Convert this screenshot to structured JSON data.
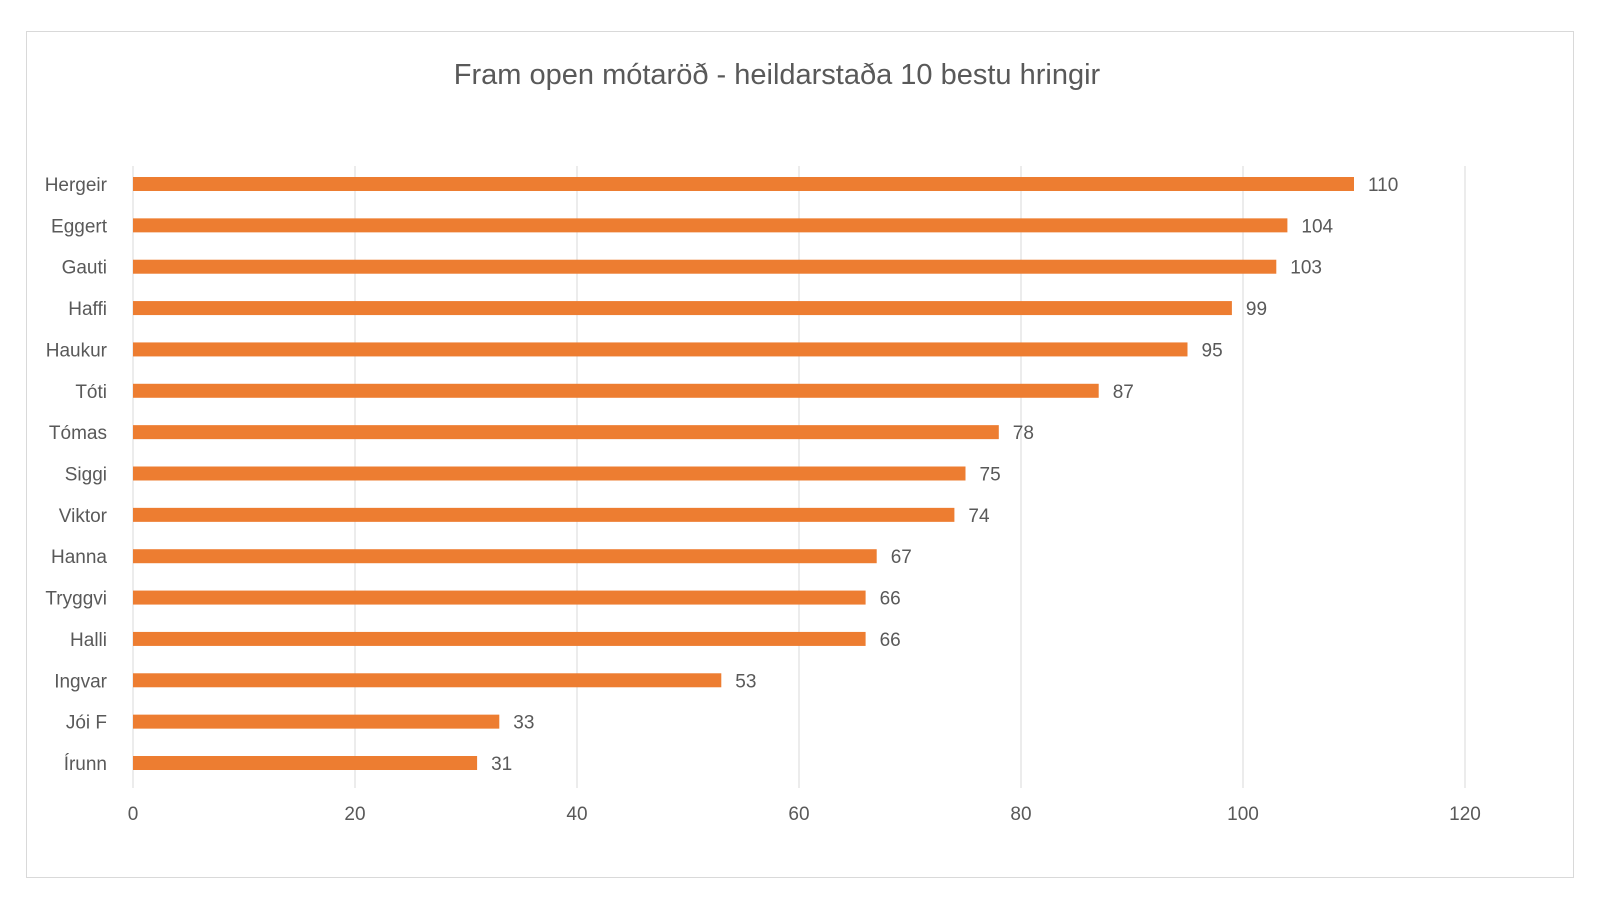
{
  "chart_data": {
    "type": "bar",
    "orientation": "horizontal",
    "title": "Fram open mótaröð - heildarstaða 10 bestu hringir",
    "categories": [
      "Hergeir",
      "Eggert",
      "Gauti",
      "Haffi",
      "Haukur",
      "Tóti",
      "Tómas",
      "Siggi",
      "Viktor",
      "Hanna",
      "Tryggvi",
      "Halli",
      "Ingvar",
      "Jói F",
      "Írunn"
    ],
    "values": [
      110,
      104,
      103,
      99,
      95,
      87,
      78,
      75,
      74,
      67,
      66,
      66,
      53,
      33,
      31
    ],
    "xlim": [
      0,
      120
    ],
    "xticks": [
      0,
      20,
      40,
      60,
      80,
      100,
      120
    ],
    "grid": "vertical",
    "legend": "none",
    "bar_color": "#ED7D31",
    "data_labels": true
  }
}
